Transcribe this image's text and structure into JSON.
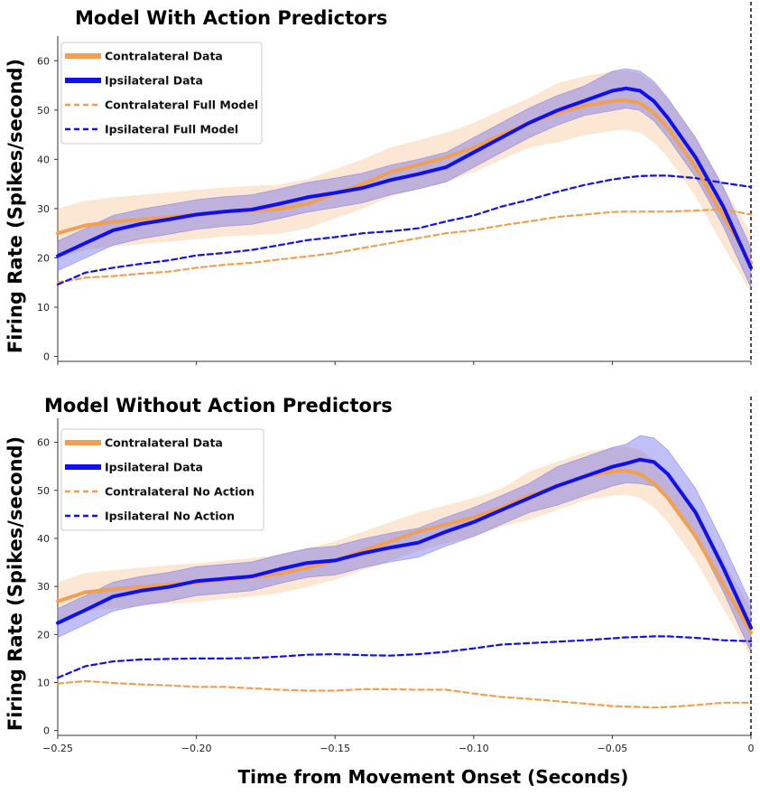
{
  "chart_data": [
    {
      "type": "line",
      "title": "Model With Action Predictors",
      "ylabel": "Firing Rate (Spikes/second)",
      "xlabel": "",
      "xlim": [
        -0.25,
        0
      ],
      "ylim": [
        -1,
        65
      ],
      "xticks": [
        -0.25,
        -0.2,
        -0.15,
        -0.1,
        -0.05,
        0
      ],
      "xtick_labels": [
        "",
        "",
        "",
        "",
        "",
        ""
      ],
      "yticks": [
        0,
        10,
        20,
        30,
        40,
        50,
        60
      ],
      "ytick_labels": [
        "0",
        "10",
        "20",
        "30",
        "40",
        "50",
        "60"
      ],
      "x": [
        -0.25,
        -0.24,
        -0.23,
        -0.22,
        -0.21,
        -0.2,
        -0.19,
        -0.18,
        -0.17,
        -0.16,
        -0.15,
        -0.14,
        -0.13,
        -0.12,
        -0.11,
        -0.1,
        -0.09,
        -0.08,
        -0.07,
        -0.06,
        -0.05,
        -0.045,
        -0.04,
        -0.035,
        -0.03,
        -0.02,
        -0.01,
        0
      ],
      "legend_position": "top-left",
      "series": [
        {
          "name": "Contralateral Data",
          "style": "solid",
          "color": "#f0a050",
          "values": [
            25,
            26.6,
            27.3,
            27.8,
            28.3,
            28.8,
            29.3,
            29.6,
            29.9,
            31.0,
            33.0,
            35.0,
            37.4,
            38.9,
            40.4,
            42.4,
            45.0,
            47.4,
            49.4,
            50.9,
            51.8,
            52.0,
            51.4,
            49.4,
            46.4,
            38.4,
            28.4,
            19
          ],
          "band": [
            5,
            5,
            5,
            5,
            5,
            5,
            5,
            5,
            5,
            5,
            5,
            5,
            5,
            5,
            5,
            5,
            5,
            5,
            6,
            6,
            6,
            6,
            6,
            6,
            6,
            6,
            6,
            6
          ]
        },
        {
          "name": "Ipsilateral Data",
          "style": "solid",
          "color": "#1010ee",
          "values": [
            20.4,
            23.0,
            25.6,
            26.9,
            27.8,
            28.8,
            29.4,
            29.8,
            31.0,
            32.3,
            33.2,
            34.2,
            35.8,
            37.0,
            38.4,
            41.4,
            44.4,
            47.4,
            49.9,
            51.9,
            53.9,
            54.4,
            53.9,
            51.8,
            48.4,
            40.4,
            30.4,
            18
          ],
          "band": [
            3,
            3,
            3,
            3,
            3,
            3,
            3,
            3,
            3,
            3,
            3,
            3,
            3,
            3,
            3,
            3,
            3,
            3,
            3,
            3,
            4,
            4,
            4,
            4,
            4,
            4,
            4,
            4
          ]
        },
        {
          "name": "Contralateral Full Model",
          "style": "dashed",
          "color": "#f0a050",
          "values": [
            15.0,
            16.0,
            16.3,
            16.8,
            17.2,
            18.0,
            18.6,
            19.0,
            19.7,
            20.3,
            21.0,
            22.0,
            23.0,
            24.0,
            25.0,
            25.6,
            26.6,
            27.4,
            28.3,
            28.8,
            29.3,
            29.4,
            29.4,
            29.4,
            29.4,
            29.6,
            29.9,
            28.8
          ]
        },
        {
          "name": "Ipsilateral Full Model",
          "style": "dashed",
          "color": "#1010ee",
          "values": [
            14.6,
            17.0,
            18.0,
            18.8,
            19.5,
            20.5,
            21.0,
            21.6,
            22.6,
            23.6,
            24.2,
            25.0,
            25.4,
            26.0,
            27.4,
            28.6,
            30.4,
            31.8,
            33.4,
            34.8,
            35.9,
            36.3,
            36.6,
            36.7,
            36.7,
            36.2,
            35.2,
            34.4
          ]
        }
      ]
    },
    {
      "type": "line",
      "title": "Model Without Action Predictors",
      "ylabel": "Firing Rate (Spikes/second)",
      "xlabel": "Time from Movement Onset (Seconds)",
      "xlim": [
        -0.25,
        0
      ],
      "ylim": [
        -1,
        65
      ],
      "xticks": [
        -0.25,
        -0.2,
        -0.15,
        -0.1,
        -0.05,
        0
      ],
      "xtick_labels": [
        "−0.25",
        "−0.20",
        "−0.15",
        "−0.10",
        "−0.05",
        "0"
      ],
      "yticks": [
        0,
        10,
        20,
        30,
        40,
        50,
        60
      ],
      "ytick_labels": [
        "0",
        "10",
        "20",
        "30",
        "40",
        "50",
        "60"
      ],
      "x": [
        -0.25,
        -0.24,
        -0.23,
        -0.22,
        -0.21,
        -0.2,
        -0.19,
        -0.18,
        -0.17,
        -0.16,
        -0.15,
        -0.14,
        -0.13,
        -0.12,
        -0.11,
        -0.1,
        -0.09,
        -0.08,
        -0.07,
        -0.06,
        -0.05,
        -0.045,
        -0.04,
        -0.035,
        -0.03,
        -0.02,
        -0.01,
        0
      ],
      "legend_position": "top-left",
      "series": [
        {
          "name": "Contralateral Data",
          "style": "solid",
          "color": "#f0a050",
          "values": [
            26.9,
            28.8,
            29.4,
            29.9,
            30.4,
            30.8,
            31.4,
            31.9,
            32.6,
            33.9,
            35.4,
            37.4,
            39.4,
            41.4,
            42.9,
            44.4,
            46.4,
            48.9,
            50.9,
            52.9,
            53.9,
            54.1,
            53.4,
            51.4,
            48.4,
            40.4,
            30.4,
            20.4
          ],
          "band": [
            4,
            4,
            4,
            4,
            4,
            4,
            4,
            4,
            4,
            4,
            4,
            4,
            4,
            4,
            4,
            4,
            4,
            5,
            5,
            5,
            5,
            5,
            5,
            5,
            5,
            5,
            5,
            5
          ]
        },
        {
          "name": "Ipsilateral Data",
          "style": "solid",
          "color": "#1010ee",
          "values": [
            22.4,
            25.1,
            27.9,
            29.1,
            29.9,
            31.1,
            31.6,
            32.1,
            33.6,
            34.9,
            35.4,
            36.9,
            38.1,
            39.1,
            41.4,
            43.4,
            45.9,
            48.4,
            50.9,
            52.9,
            54.9,
            55.6,
            56.4,
            55.9,
            53.4,
            45.4,
            33.9,
            21.4
          ],
          "band": [
            3,
            3,
            3,
            3,
            3,
            3,
            3,
            3,
            3,
            3,
            3,
            3,
            3,
            3,
            3,
            3,
            3,
            3,
            4,
            4,
            4,
            4,
            5,
            5,
            5,
            5,
            5,
            5
          ]
        },
        {
          "name": "Contralateral No Action",
          "style": "dashed",
          "color": "#f0a050",
          "values": [
            9.8,
            10.3,
            9.9,
            9.6,
            9.4,
            9.1,
            9.1,
            8.8,
            8.5,
            8.3,
            8.3,
            8.6,
            8.6,
            8.5,
            8.5,
            7.7,
            7.0,
            6.6,
            6.1,
            5.6,
            5.1,
            5.0,
            4.9,
            4.8,
            4.9,
            5.3,
            5.8,
            5.8
          ]
        },
        {
          "name": "Ipsilateral No Action",
          "style": "dashed",
          "color": "#1010ee",
          "values": [
            11.0,
            13.4,
            14.4,
            14.8,
            14.9,
            15.0,
            15.0,
            15.1,
            15.4,
            15.8,
            15.9,
            15.7,
            15.6,
            15.9,
            16.4,
            17.1,
            17.9,
            18.2,
            18.5,
            18.8,
            19.2,
            19.4,
            19.5,
            19.6,
            19.6,
            19.3,
            18.8,
            18.6
          ]
        }
      ]
    }
  ]
}
